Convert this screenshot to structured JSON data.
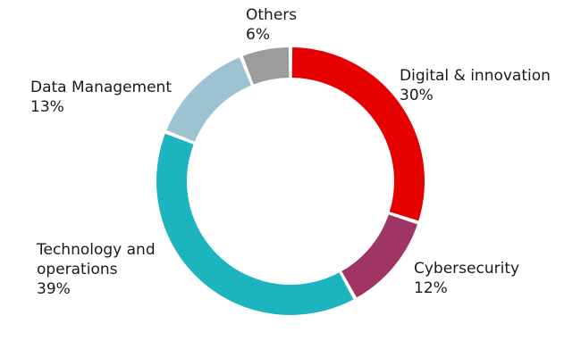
{
  "chart_data": {
    "type": "pie",
    "style": "donut",
    "title": "",
    "slices": [
      {
        "label_lines": [
          "Digital & innovation"
        ],
        "value": 30,
        "value_label": "30%",
        "color": "#e60000"
      },
      {
        "label_lines": [
          "Cybersecurity"
        ],
        "value": 12,
        "value_label": "12%",
        "color": "#9e3563"
      },
      {
        "label_lines": [
          "Technology and",
          "operations"
        ],
        "value": 39,
        "value_label": "39%",
        "color": "#1cb5bd"
      },
      {
        "label_lines": [
          "Data Management"
        ],
        "value": 13,
        "value_label": "13%",
        "color": "#9dc3d3"
      },
      {
        "label_lines": [
          "Others"
        ],
        "value": 6,
        "value_label": "6%",
        "color": "#9c9c9c"
      }
    ]
  }
}
